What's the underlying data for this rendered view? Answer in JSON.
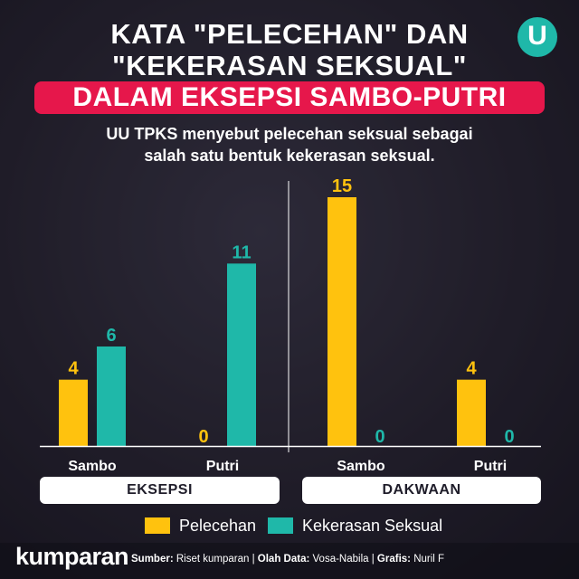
{
  "header": {
    "title_line1": "KATA \"PELECEHAN\" DAN",
    "title_line2": "\"KEKERASAN SEKSUAL\"",
    "banner": "DALAM EKSEPSI SAMBO-PUTRI",
    "subtitle_line1": "UU TPKS menyebut pelecehan seksual sebagai",
    "subtitle_line2": "salah satu bentuk kekerasan seksual."
  },
  "logo": {
    "letter": "U",
    "icon": "u-logo-icon"
  },
  "colors": {
    "pelecehan": "#ffc20e",
    "kekerasan": "#1fb8a9",
    "banner": "#e6174b"
  },
  "chart_data": {
    "type": "bar",
    "groups": [
      {
        "name": "EKSEPSI",
        "categories": [
          "Sambo",
          "Putri"
        ]
      },
      {
        "name": "DAKWAAN",
        "categories": [
          "Sambo",
          "Putri"
        ]
      }
    ],
    "categories": [
      "Sambo",
      "Putri",
      "Sambo",
      "Putri"
    ],
    "series": [
      {
        "name": "Pelecehan",
        "values": [
          4,
          0,
          15,
          4
        ]
      },
      {
        "name": "Kekerasan Seksual",
        "values": [
          6,
          11,
          0,
          0
        ]
      }
    ],
    "ylim": [
      0,
      15
    ]
  },
  "legend": {
    "pelecehan": "Pelecehan",
    "kekerasan": "Kekerasan Seksual"
  },
  "footer": {
    "brand": "kumparan",
    "sumber_label": "Sumber:",
    "sumber_value": "Riset kumparan",
    "olah_label": "Olah Data:",
    "olah_value": "Vosa-Nabila",
    "grafis_label": "Grafis:",
    "grafis_value": "Nuril F"
  }
}
